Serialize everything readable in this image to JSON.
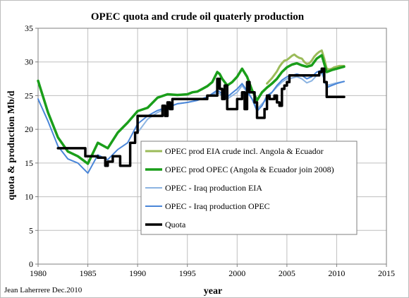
{
  "chart_data": {
    "type": "line",
    "title": "OPEC quota and crude oil quaterly production",
    "xlabel": "year",
    "ylabel": "quota & production Mb/d",
    "xlim": [
      1980,
      2015
    ],
    "ylim": [
      0,
      35
    ],
    "x_ticks": [
      1980,
      1985,
      1990,
      1995,
      2000,
      2005,
      2010,
      2015
    ],
    "y_ticks": [
      0,
      5,
      10,
      15,
      20,
      25,
      30,
      35
    ],
    "grid": true,
    "legend_position": "center-right",
    "credit": "Jean Laherrere Dec.2010",
    "series": [
      {
        "name": "OPEC prod EIA crude incl. Angola & Ecuador",
        "color": "#9bbb59",
        "stroke_width": 3,
        "x": [
          2003.0,
          2003.5,
          2004.0,
          2004.25,
          2004.5,
          2004.75,
          2005.0,
          2005.25,
          2005.5,
          2005.75,
          2006.0,
          2006.25,
          2006.5,
          2006.75,
          2007.0,
          2007.25,
          2007.5,
          2007.75,
          2008.0,
          2008.25,
          2008.5,
          2008.75,
          2009.0,
          2009.25,
          2009.5,
          2009.75,
          2010.0,
          2010.25,
          2010.5,
          2010.75
        ],
        "y": [
          26.8,
          27.6,
          28.6,
          29.3,
          29.8,
          30.2,
          30.3,
          30.6,
          30.9,
          31.1,
          30.8,
          30.6,
          30.5,
          30.0,
          29.7,
          29.8,
          30.2,
          30.8,
          31.2,
          31.5,
          31.7,
          30.5,
          29.0,
          28.9,
          29.0,
          29.2,
          29.3,
          29.4,
          29.4,
          29.4
        ]
      },
      {
        "name": "OPEC prod OPEC (Angola & Ecuador join 2008)",
        "color": "#1a9e1a",
        "stroke_width": 3.5,
        "x": [
          1980,
          1981,
          1982,
          1983,
          1984,
          1985,
          1986,
          1987,
          1988,
          1989,
          1990,
          1991,
          1992,
          1993,
          1994,
          1995,
          1995.5,
          1996,
          1996.5,
          1997,
          1997.5,
          1998,
          1998.25,
          1998.5,
          1999,
          1999.5,
          2000,
          2000.5,
          2001,
          2001.5,
          2002,
          2002.5,
          2003,
          2003.5,
          2004,
          2004.5,
          2005,
          2005.5,
          2006,
          2006.5,
          2007,
          2007.5,
          2008,
          2008.5,
          2009,
          2009.5,
          2010,
          2010.5,
          2010.75
        ],
        "y": [
          27.2,
          22.5,
          18.8,
          16.7,
          16.0,
          14.9,
          18.0,
          17.2,
          19.5,
          21.0,
          22.7,
          23.2,
          24.7,
          25.2,
          25.1,
          25.2,
          25.5,
          25.6,
          26.0,
          26.4,
          27.0,
          28.5,
          28.2,
          27.5,
          26.5,
          27.0,
          27.8,
          29.0,
          27.8,
          25.8,
          24.3,
          25.5,
          26.2,
          26.8,
          27.5,
          28.5,
          29.2,
          29.6,
          29.8,
          29.5,
          29.3,
          29.5,
          30.5,
          31.0,
          28.5,
          28.8,
          29.0,
          29.2,
          29.3
        ]
      },
      {
        "name": "OPEC - Iraq production  EIA",
        "color": "#8cb4e2",
        "stroke_width": 2,
        "x": [
          1990,
          1991,
          1992,
          1993,
          1994,
          1995,
          1996,
          1997,
          1998,
          1998.5,
          1999,
          2000,
          2000.5,
          2001,
          2001.5,
          2002,
          2002.5,
          2003,
          2003.5,
          2004,
          2004.5,
          2005,
          2005.5,
          2006,
          2006.5,
          2007,
          2007.5,
          2008,
          2008.5,
          2009,
          2009.5,
          2010,
          2010.75
        ],
        "y": [
          19.5,
          21.5,
          22.5,
          23.2,
          23.8,
          24.0,
          24.3,
          24.8,
          25.5,
          25.0,
          24.5,
          25.5,
          26.5,
          25.5,
          24.5,
          23.0,
          23.8,
          24.5,
          25.5,
          26.3,
          27.0,
          27.5,
          27.6,
          27.8,
          27.5,
          26.9,
          27.2,
          28.0,
          28.3,
          26.5,
          26.7,
          26.9,
          27.1
        ]
      },
      {
        "name": "OPEC - Iraq production OPEC",
        "color": "#4a86d8",
        "stroke_width": 2,
        "x": [
          1980,
          1981,
          1982,
          1983,
          1984,
          1985,
          1986,
          1987,
          1988,
          1989,
          1990,
          1991,
          1992,
          1993,
          1994,
          1995,
          1996,
          1997,
          1998,
          1998.5,
          1999,
          2000,
          2000.5,
          2001,
          2001.5,
          2002,
          2002.5,
          2003,
          2003.5,
          2004,
          2004.5,
          2005,
          2005.5,
          2006,
          2006.5,
          2007,
          2007.5,
          2008,
          2008.5,
          2009,
          2009.5,
          2010,
          2010.5,
          2010.75
        ],
        "y": [
          24.5,
          21.2,
          17.5,
          15.6,
          15.0,
          13.5,
          16.2,
          15.5,
          17.0,
          18.0,
          20.8,
          22.0,
          22.8,
          23.3,
          23.8,
          24.0,
          24.3,
          24.8,
          25.8,
          25.3,
          24.8,
          26.0,
          26.8,
          25.7,
          24.5,
          22.7,
          23.5,
          25.0,
          25.5,
          26.5,
          27.3,
          27.8,
          28.0,
          28.2,
          28.0,
          27.5,
          27.8,
          28.5,
          28.8,
          26.2,
          26.5,
          26.8,
          27.0,
          27.1
        ]
      },
      {
        "name": "Quota",
        "color": "#000000",
        "stroke_width": 3.5,
        "step": true,
        "x": [
          1982.0,
          1982.5,
          1983.0,
          1984.5,
          1984.75,
          1985.0,
          1986.0,
          1986.5,
          1986.75,
          1987.0,
          1987.25,
          1987.5,
          1988.0,
          1988.25,
          1988.5,
          1989.0,
          1989.25,
          1989.75,
          1990.0,
          1990.5,
          1991.0,
          1991.5,
          1992.0,
          1992.5,
          1992.75,
          1993.0,
          1993.25,
          1993.5,
          1994.0,
          1996.0,
          1997.0,
          1997.75,
          1998.0,
          1998.25,
          1998.5,
          1998.75,
          1999.0,
          1999.5,
          2000.0,
          2000.5,
          2000.75,
          2001.0,
          2001.25,
          2001.75,
          2002.0,
          2002.25,
          2002.75,
          2003.0,
          2003.25,
          2003.75,
          2004.0,
          2004.25,
          2004.5,
          2004.75,
          2005.0,
          2005.25,
          2006.0,
          2006.5,
          2007.0,
          2007.5,
          2008.0,
          2008.25,
          2008.5,
          2008.75,
          2009.0,
          2010.0,
          2010.75
        ],
        "y": [
          17.2,
          17.2,
          17.2,
          17.2,
          16.0,
          16.0,
          15.8,
          15.8,
          14.6,
          15.2,
          15.2,
          16.0,
          16.0,
          14.6,
          14.6,
          14.6,
          18.0,
          19.5,
          22.0,
          22.0,
          22.0,
          22.0,
          22.0,
          23.5,
          22.0,
          24.0,
          23.0,
          24.5,
          24.5,
          24.5,
          25.0,
          25.0,
          27.5,
          26.0,
          24.5,
          26.5,
          23.0,
          23.0,
          24.5,
          25.5,
          23.0,
          27.0,
          25.5,
          24.0,
          21.7,
          21.7,
          23.0,
          25.0,
          24.5,
          25.0,
          24.0,
          23.5,
          26.0,
          26.5,
          27.0,
          28.0,
          28.0,
          28.0,
          28.0,
          28.0,
          28.0,
          28.5,
          29.0,
          27.0,
          24.8,
          24.8,
          24.8
        ]
      }
    ]
  }
}
